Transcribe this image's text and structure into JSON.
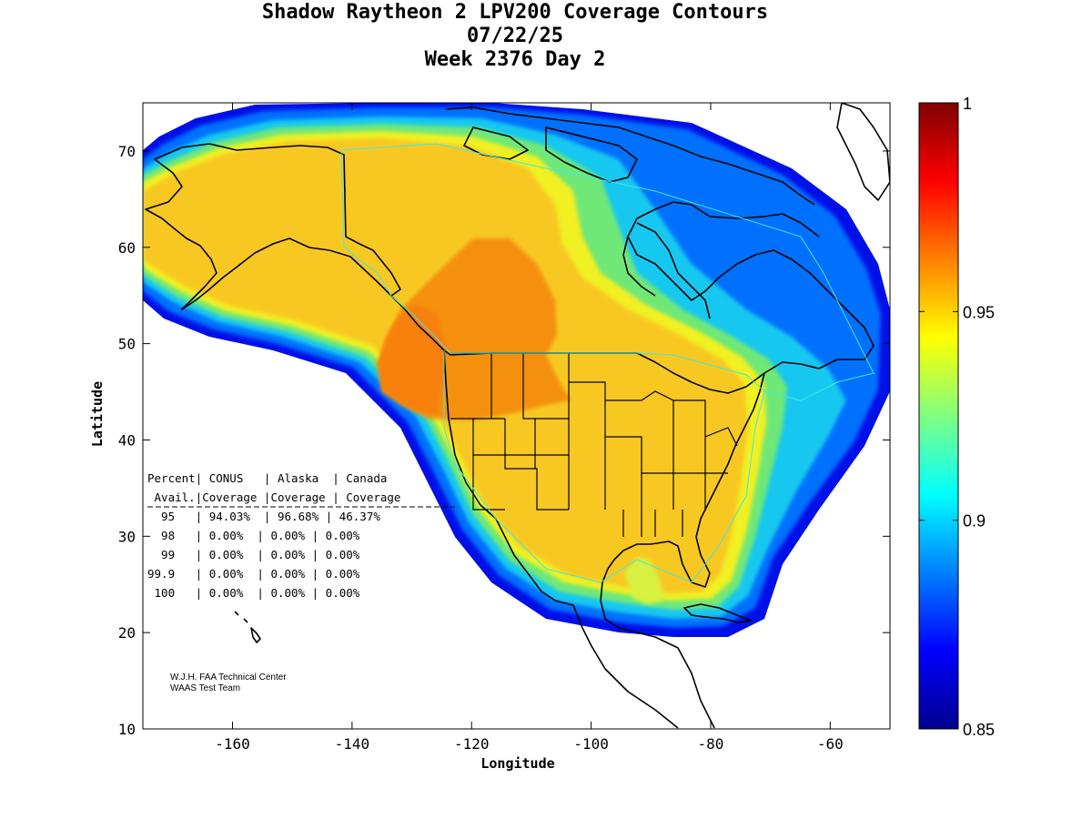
{
  "title_lines": [
    "Shadow Raytheon 2 LPV200 Coverage Contours",
    "07/22/25",
    "Week 2376 Day 2"
  ],
  "axes": {
    "xlabel": "Longitude",
    "ylabel": "Latitude",
    "xticks": [
      "-160",
      "-140",
      "-120",
      "-100",
      "-80",
      "-60"
    ],
    "yticks": [
      "70",
      "60",
      "50",
      "40",
      "30",
      "20",
      "10"
    ],
    "xlim": [
      -175,
      -50
    ],
    "ylim": [
      10,
      75
    ]
  },
  "colorbar": {
    "ticks": [
      "1",
      "0.95",
      "0.9",
      "0.85"
    ],
    "range": [
      0.85,
      1.0
    ],
    "colormap": "jet"
  },
  "table": {
    "header1": "Percent| CONUS   | Alaska  | Canada",
    "header2": " Avail.|Coverage |Coverage | Coverage",
    "rows": [
      "  95   | 94.03%  | 96.68% | 46.37%",
      "  98   | 0.00%  | 0.00% | 0.00%",
      "  99   | 0.00%  | 0.00% | 0.00%",
      "99.9   | 0.00%  | 0.00% | 0.00%",
      " 100   | 0.00%  | 0.00% | 0.00%"
    ]
  },
  "credit": [
    "W.J.H. FAA Technical Center",
    "WAAS Test Team"
  ],
  "chart_data": {
    "type": "heatmap",
    "title": "Shadow Raytheon 2 LPV200 Coverage Contours",
    "subtitle": [
      "07/22/25",
      "Week 2376 Day 2"
    ],
    "xlabel": "Longitude",
    "ylabel": "Latitude",
    "xlim": [
      -175,
      -50
    ],
    "ylim": [
      10,
      75
    ],
    "color_range": [
      0.85,
      1.0
    ],
    "colormap": "jet",
    "coverage_table": {
      "columns": [
        "Percent Avail.",
        "CONUS Coverage",
        "Alaska Coverage",
        "Canada Coverage"
      ],
      "rows": [
        [
          "95",
          "94.03%",
          "96.68%",
          "46.37%"
        ],
        [
          "98",
          "0.00%",
          "0.00%",
          "0.00%"
        ],
        [
          "99",
          "0.00%",
          "0.00%",
          "0.00%"
        ],
        [
          "99.9",
          "0.00%",
          "0.00%",
          "0.00%"
        ],
        [
          "100",
          "0.00%",
          "0.00%",
          "0.00%"
        ]
      ]
    }
  }
}
